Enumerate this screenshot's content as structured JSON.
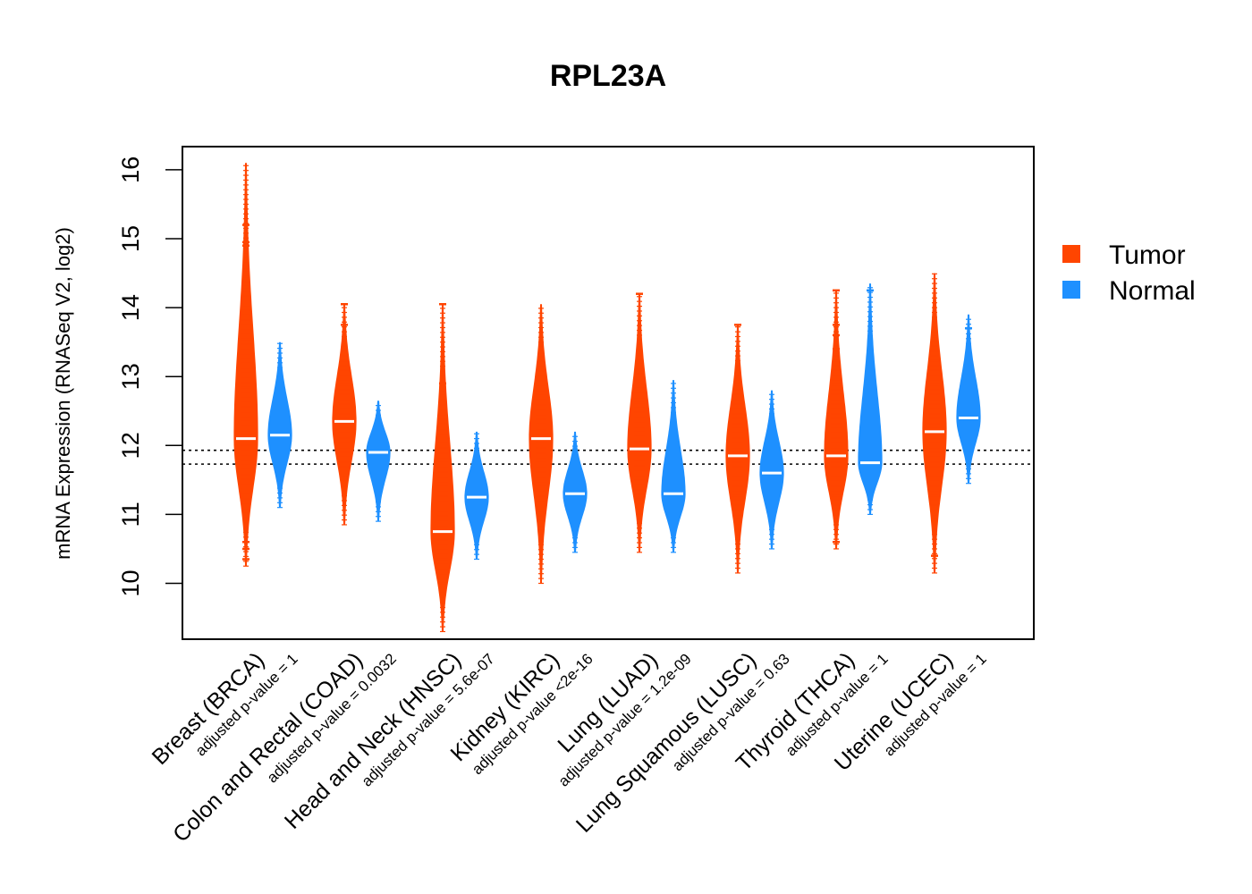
{
  "chart_data": {
    "type": "beanplot",
    "title": "RPL23A",
    "ylabel": "mRNA Expression (RNASeq V2, log2)",
    "xlabel": "",
    "ylim": [
      9.2,
      16.35
    ],
    "yticks": [
      10,
      11,
      12,
      13,
      14,
      15,
      16
    ],
    "reference_lines": [
      11.93,
      11.73
    ],
    "legend": {
      "position": "right",
      "entries": [
        {
          "label": "Tumor",
          "color": "#ff4500"
        },
        {
          "label": "Normal",
          "color": "#1e90ff"
        }
      ]
    },
    "categories": [
      {
        "name": "Breast (BRCA)",
        "pvalue": "adjusted p-value = 1",
        "tumor": {
          "median": 12.1,
          "min": 10.25,
          "max": 16.1,
          "outliers": [
            15.2,
            14.95,
            14.9,
            14.55,
            14.45,
            14.3,
            10.6,
            10.5,
            10.35
          ]
        },
        "normal": {
          "median": 12.15,
          "min": 11.1,
          "max": 13.5,
          "outliers": []
        }
      },
      {
        "name": "Colon and Rectal (COAD)",
        "pvalue": "adjusted p-value = 0.0032",
        "tumor": {
          "median": 12.35,
          "min": 10.85,
          "max": 14.05,
          "outliers": [
            14.05,
            13.75
          ]
        },
        "normal": {
          "median": 11.9,
          "min": 10.9,
          "max": 12.65,
          "outliers": []
        }
      },
      {
        "name": "Head and Neck (HNSC)",
        "pvalue": "adjusted p-value = 5.6e-07",
        "tumor": {
          "median": 10.75,
          "min": 9.3,
          "max": 14.05,
          "outliers": [
            14.05,
            12.9
          ]
        },
        "normal": {
          "median": 11.25,
          "min": 10.35,
          "max": 12.2,
          "outliers": []
        }
      },
      {
        "name": "Kidney (KIRC)",
        "pvalue": "adjusted p-value <2e-16",
        "tumor": {
          "median": 12.1,
          "min": 10.0,
          "max": 14.05,
          "outliers": []
        },
        "normal": {
          "median": 11.3,
          "min": 10.45,
          "max": 12.2,
          "outliers": []
        }
      },
      {
        "name": "Lung (LUAD)",
        "pvalue": "adjusted p-value = 1.2e-09",
        "tumor": {
          "median": 11.95,
          "min": 10.45,
          "max": 14.2,
          "outliers": [
            14.2
          ]
        },
        "normal": {
          "median": 11.3,
          "min": 10.45,
          "max": 12.95,
          "outliers": []
        }
      },
      {
        "name": "Lung Squamous (LUSC)",
        "pvalue": "adjusted p-value = 0.63",
        "tumor": {
          "median": 11.85,
          "min": 10.15,
          "max": 13.75,
          "outliers": [
            13.75
          ]
        },
        "normal": {
          "median": 11.6,
          "min": 10.5,
          "max": 12.8,
          "outliers": []
        }
      },
      {
        "name": "Thyroid (THCA)",
        "pvalue": "adjusted p-value = 1",
        "tumor": {
          "median": 11.85,
          "min": 10.5,
          "max": 14.25,
          "outliers": [
            14.25,
            13.75,
            13.6,
            13.4,
            10.6
          ]
        },
        "normal": {
          "median": 11.75,
          "min": 11.0,
          "max": 14.35,
          "outliers": [
            14.25,
            13.3
          ]
        }
      },
      {
        "name": "Uterine (UCEC)",
        "pvalue": "adjusted p-value = 1",
        "tumor": {
          "median": 12.2,
          "min": 10.15,
          "max": 14.5,
          "outliers": [
            10.4
          ]
        },
        "normal": {
          "median": 12.4,
          "min": 11.45,
          "max": 13.9,
          "outliers": [
            13.7
          ]
        }
      }
    ]
  }
}
